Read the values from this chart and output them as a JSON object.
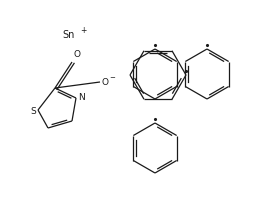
{
  "bg_color": "#ffffff",
  "line_color": "#1a1a1a",
  "lw": 0.9,
  "figsize": [
    2.59,
    1.98
  ],
  "dpi": 100,
  "Sn_label": "Sn",
  "plus_label": "+",
  "O_label": "O",
  "O_minus_label": "O",
  "S_label": "S",
  "N_label": "N"
}
